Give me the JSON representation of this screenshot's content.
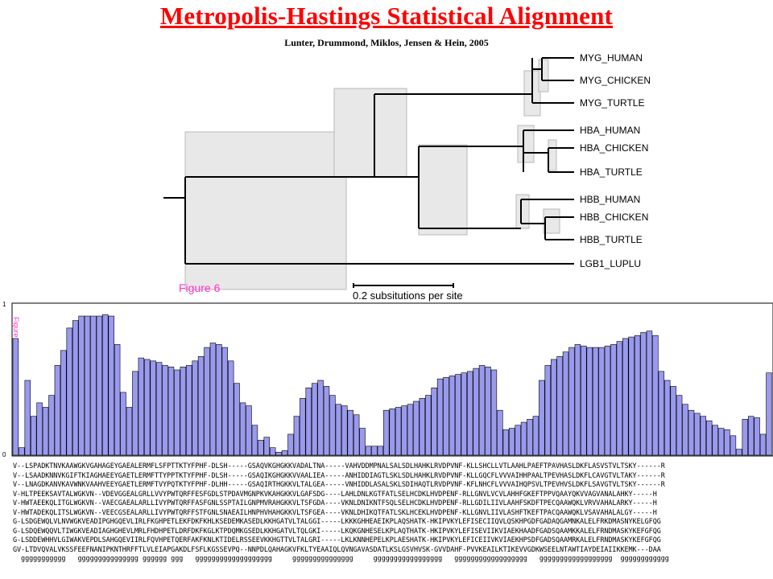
{
  "header": {
    "title": "Metropolis-Hastings Statistical Alignment",
    "authors": "Lunter, Drummond, Miklos, Jensen & Hein, 2005"
  },
  "tree": {
    "leaves": [
      "MYG_HUMAN",
      "MYG_CHICKEN",
      "MYG_TURTLE",
      "HBA_HUMAN",
      "HBA_CHICKEN",
      "HBA_TURTLE",
      "HBB_HUMAN",
      "HBB_CHICKEN",
      "HBB_TURTLE",
      "LGB1_LUPLU"
    ],
    "figure_label": "Figure 6",
    "scale_label": "0.2 subsitutions per site"
  },
  "bar_plot": {
    "y_top_label": "1",
    "y_bottom_label": "0",
    "side_label": "Figure 6",
    "bar_color": "#9999ee",
    "values": [
      0.78,
      0.05,
      0.5,
      0.26,
      0.35,
      0.32,
      0.4,
      0.6,
      0.7,
      0.85,
      0.9,
      0.93,
      0.93,
      0.93,
      0.93,
      0.94,
      0.93,
      0.74,
      0.42,
      0.32,
      0.56,
      0.65,
      0.64,
      0.63,
      0.62,
      0.6,
      0.59,
      0.57,
      0.59,
      0.6,
      0.63,
      0.66,
      0.72,
      0.75,
      0.74,
      0.72,
      0.63,
      0.48,
      0.35,
      0.33,
      0.2,
      0.1,
      0.12,
      0.05,
      0.02,
      0.03,
      0.14,
      0.26,
      0.38,
      0.45,
      0.48,
      0.5,
      0.46,
      0.4,
      0.34,
      0.33,
      0.3,
      0.27,
      0.18,
      0.06,
      0.06,
      0.06,
      0.3,
      0.31,
      0.32,
      0.33,
      0.34,
      0.36,
      0.38,
      0.4,
      0.45,
      0.51,
      0.52,
      0.53,
      0.54,
      0.55,
      0.56,
      0.58,
      0.6,
      0.59,
      0.57,
      0.3,
      0.17,
      0.18,
      0.2,
      0.22,
      0.24,
      0.26,
      0.5,
      0.6,
      0.64,
      0.66,
      0.69,
      0.72,
      0.74,
      0.73,
      0.72,
      0.72,
      0.72,
      0.73,
      0.74,
      0.76,
      0.78,
      0.79,
      0.8,
      0.82,
      0.83,
      0.8,
      0.56,
      0.5,
      0.46,
      0.4,
      0.34,
      0.3,
      0.28,
      0.26,
      0.23,
      0.2,
      0.18,
      0.17,
      0.13,
      0.04,
      0.24,
      0.26,
      0.25,
      0.14,
      0.55
    ],
    "alignment": [
      "V--LSPADKTNVKAAWGKVGAHAGEYGAEALERMFLSFPTTKTYFPHF-DLSH-----GSAQVKGHGKKVADALTNA-----VAHVDDMPNALSALSDLHAHKLRVDPVNF-KLLSHCLLVTLAAHLPAEFTPAVHASLDKFLASVSTVLTSKY------R",
      "V--LSAADKNNVKGIFTKIAGHAEEYGAETLERMFTTYPPTKTYFPHF-DLSH-----GSAQIKGHGKKVVAALIEA-----ANHIDDIAGTLSKLSDLHAHKLRVDPVNF-KLLGQCFLVVVAIHHPAALTPEVHASLDKFLCAVGTVLTAKY------R",
      "V--LNAGDKANVKAVWNKVAAHVEEYGAETLERMFTVYPQTKTYFPHF-DLHH-----GSAQIRTHGKKVLTALGEA-----VNHIDDLASALSKLSDIHAQTLRVDPVNF-KFLNHCFLVVVAIHQPSVLTPEVHVSLDKFLSAVGTVLTSKY------R",
      "V-HLTPEEKSAVTALWGKVN--VDEVGGEALGRLLVVYPWTQRFFESFGDLSTPDAVMGNPKVKAHGKKVLGAFSDG----LAHLDNLKGTFATLSELHCDKLHVDPENF-RLLGNVLVCVLAHHFGKEFTPPVQAAYQKVVAGVANALAHKY-----H",
      "V-HWTAEEKQLITGLWGKVN--VAECGAEALARLLIVYPWTQRFFASFGNLSSPTAILGNPMVRAHGKKVLTSFGDA----VKNLDNIKNTFSQLSELHCDKLHVDPENF-RLLGDILIIVLAAHFSKDFTPECQAAWQKLVRVVAHALARKY-----H",
      "V-HWTADEKQLITSLWGKVN--VEECGSEALARLLIVYPWTQRFFSTFGNLSNAEAILHNPHVHAHGKKVLTSFGEA----VKNLDHIKQTFATLSKLHCEKLHVDPENF-KLLGNVLIIVLASHFTKEFTPACQAAWQKLVSAVAHALALGY-----H",
      "G-LSDGEWQLVLNVWGKVEADIPGHGQEVLIRLFKGHPETLEKFDKFKHLKSEDEMKASEDLKKHGATVLTALGGI-----LKKKGHHEAEIKPLAQSHATK-HKIPVKYLEFISECIIQVLQSKHPGDFGADAQGAMNKALELFRKDMASNYKELGFQG",
      "G-LSDQEWQQVLTIWGKVEADIAGHGHEVLMRLFHDHPETLDRFDKFKGLKTPDQMKGSEDLKKHGATVLTQLGKI-----LKQKGNHESELKPLAQTHATK-HKIPVKYLEFISEVIIKVIAEKHAADFGADSQAAMKKALELFRNDMASKYKEFGFQG",
      "G-LSDDEWHHVLGIWAKVEPDLSAHGQEVIIRLFQVHPETQERFAKFKNLKTIDELRSSEEVKKHGTTVLTALGRI-----LKLKNNHEPELKPLAESHATK-HKIPVKYLEFICEIIVKVIAEKHPSDFGADSQAAMRKALELFRNDMASKYKEFGFQG",
      "GV-LTDVQVALVKSSFEEFNANIPKNTHRFFTLVLEIAPGAKDLFSFLKGSSEVPQ--NNPDLQAHAGKVFKLTYEAAIQLQVNGAVASDATLKSLGSVHVSK-GVVDAHF-PVVKEAILKTIKEVVGDKWSEELNTAWTIAYDEIAIIKKEMK---DAA",
      "  ggggggggggg   ggggggggggggggg gggggg ggg   ggggggggggggggggggg     ggggggggggggggg     ggggggggggggggggg   gggggggggggggggggg   gggggggggggggggggg  gggggggggggg"
    ]
  }
}
